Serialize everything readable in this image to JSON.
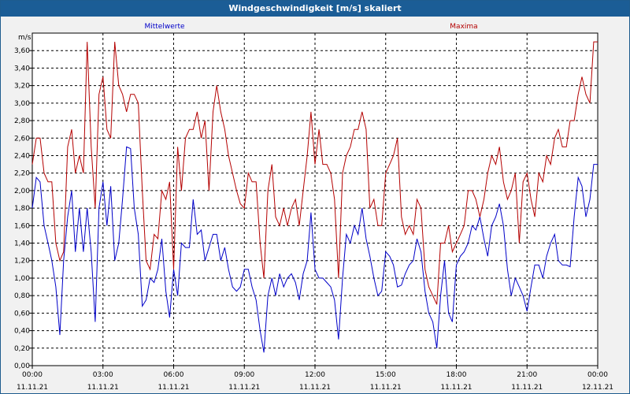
{
  "chart_data": {
    "type": "line",
    "title": "Windgeschwindigkeit [m/s] skaliert",
    "ylabel": "m/s",
    "ylim": [
      0,
      3.8
    ],
    "yticks": [
      "0,00",
      "0,20",
      "0,40",
      "0,60",
      "0,80",
      "1,00",
      "1,20",
      "1,40",
      "1,60",
      "1,80",
      "2,00",
      "2,20",
      "2,40",
      "2,60",
      "2,80",
      "3,00",
      "3,20",
      "3,40",
      "3,60"
    ],
    "xrange_hours": [
      0,
      24
    ],
    "xticks": [
      {
        "time": "00:00",
        "date": "11.11.21"
      },
      {
        "time": "03:00",
        "date": "11.11.21"
      },
      {
        "time": "06:00",
        "date": "11.11.21"
      },
      {
        "time": "09:00",
        "date": "11.11.21"
      },
      {
        "time": "12:00",
        "date": "11.11.21"
      },
      {
        "time": "15:00",
        "date": "11.11.21"
      },
      {
        "time": "18:00",
        "date": "11.11.21"
      },
      {
        "time": "21:00",
        "date": "11.11.21"
      },
      {
        "time": "00:00",
        "date": "12.11.21"
      }
    ],
    "grid": true,
    "series": [
      {
        "name": "Mittelwerte",
        "color": "#0000c8",
        "x": [
          0,
          0.17,
          0.33,
          0.5,
          0.67,
          0.83,
          1.0,
          1.17,
          1.33,
          1.5,
          1.67,
          1.83,
          2.0,
          2.17,
          2.33,
          2.5,
          2.67,
          2.83,
          3.0,
          3.17,
          3.33,
          3.5,
          3.67,
          3.83,
          4.0,
          4.17,
          4.33,
          4.5,
          4.67,
          4.83,
          5.0,
          5.17,
          5.33,
          5.5,
          5.67,
          5.83,
          6.0,
          6.17,
          6.33,
          6.5,
          6.67,
          6.83,
          7.0,
          7.17,
          7.33,
          7.5,
          7.67,
          7.83,
          8.0,
          8.17,
          8.33,
          8.5,
          8.67,
          8.83,
          9.0,
          9.17,
          9.33,
          9.5,
          9.67,
          9.83,
          10.0,
          10.17,
          10.33,
          10.5,
          10.67,
          10.83,
          11.0,
          11.17,
          11.33,
          11.5,
          11.67,
          11.83,
          12.0,
          12.17,
          12.33,
          12.5,
          12.67,
          12.83,
          13.0,
          13.17,
          13.33,
          13.5,
          13.67,
          13.83,
          14.0,
          14.17,
          14.33,
          14.5,
          14.67,
          14.83,
          15.0,
          15.17,
          15.33,
          15.5,
          15.67,
          15.83,
          16.0,
          16.17,
          16.33,
          16.5,
          16.67,
          16.83,
          17.0,
          17.17,
          17.33,
          17.5,
          17.67,
          17.83,
          18.0,
          18.17,
          18.33,
          18.5,
          18.67,
          18.83,
          19.0,
          19.17,
          19.33,
          19.5,
          19.67,
          19.83,
          20.0,
          20.17,
          20.33,
          20.5,
          20.67,
          20.83,
          21.0,
          21.17,
          21.33,
          21.5,
          21.67,
          21.83,
          22.0,
          22.17,
          22.33,
          22.5,
          22.67,
          22.83,
          23.0,
          23.17,
          23.33,
          23.5,
          23.67,
          23.83,
          24.0
        ],
        "values": [
          1.8,
          2.15,
          2.1,
          1.6,
          1.4,
          1.2,
          0.9,
          0.35,
          1.2,
          1.7,
          2.0,
          1.3,
          1.8,
          1.3,
          1.8,
          1.3,
          0.5,
          1.8,
          2.1,
          1.6,
          2.05,
          1.2,
          1.4,
          1.9,
          2.5,
          2.48,
          1.8,
          1.5,
          0.68,
          0.75,
          1.0,
          0.95,
          1.1,
          1.45,
          0.85,
          0.55,
          1.1,
          0.8,
          1.4,
          1.35,
          1.35,
          1.9,
          1.5,
          1.55,
          1.2,
          1.35,
          1.5,
          1.5,
          1.2,
          1.35,
          1.1,
          0.9,
          0.85,
          0.9,
          1.1,
          1.1,
          0.9,
          0.75,
          0.4,
          0.15,
          0.8,
          1.0,
          0.8,
          1.05,
          0.9,
          1.0,
          1.05,
          0.95,
          0.75,
          1.05,
          1.2,
          1.75,
          1.1,
          1.0,
          1.0,
          0.95,
          0.9,
          0.75,
          0.3,
          1.0,
          1.5,
          1.4,
          1.6,
          1.5,
          1.8,
          1.45,
          1.25,
          1.0,
          0.8,
          0.85,
          1.3,
          1.25,
          1.15,
          0.9,
          0.92,
          1.05,
          1.15,
          1.2,
          1.45,
          1.3,
          0.85,
          0.6,
          0.5,
          0.2,
          0.8,
          1.2,
          0.6,
          0.5,
          1.15,
          1.25,
          1.3,
          1.4,
          1.6,
          1.55,
          1.7,
          1.45,
          1.25,
          1.6,
          1.7,
          1.85,
          1.6,
          1.1,
          0.8,
          1.0,
          0.9,
          0.8,
          0.62,
          0.9,
          1.15,
          1.15,
          1.0,
          1.25,
          1.4,
          1.5,
          1.2,
          1.15,
          1.15,
          1.13,
          1.7,
          2.15,
          2.05,
          1.7,
          1.9,
          2.3,
          2.3
        ],
        "label_pos": "left"
      },
      {
        "name": "Maxima",
        "color": "#b40000",
        "x": [
          0,
          0.17,
          0.33,
          0.5,
          0.67,
          0.83,
          1.0,
          1.17,
          1.33,
          1.5,
          1.67,
          1.83,
          2.0,
          2.17,
          2.33,
          2.5,
          2.67,
          2.83,
          3.0,
          3.17,
          3.33,
          3.5,
          3.67,
          3.83,
          4.0,
          4.17,
          4.33,
          4.5,
          4.67,
          4.83,
          5.0,
          5.17,
          5.33,
          5.5,
          5.67,
          5.83,
          6.0,
          6.17,
          6.33,
          6.5,
          6.67,
          6.83,
          7.0,
          7.17,
          7.33,
          7.5,
          7.67,
          7.83,
          8.0,
          8.17,
          8.33,
          8.5,
          8.67,
          8.83,
          9.0,
          9.17,
          9.33,
          9.5,
          9.67,
          9.83,
          10.0,
          10.17,
          10.33,
          10.5,
          10.67,
          10.83,
          11.0,
          11.17,
          11.33,
          11.5,
          11.67,
          11.83,
          12.0,
          12.17,
          12.33,
          12.5,
          12.67,
          12.83,
          13.0,
          13.17,
          13.33,
          13.5,
          13.67,
          13.83,
          14.0,
          14.17,
          14.33,
          14.5,
          14.67,
          14.83,
          15.0,
          15.17,
          15.33,
          15.5,
          15.67,
          15.83,
          16.0,
          16.17,
          16.33,
          16.5,
          16.67,
          16.83,
          17.0,
          17.17,
          17.33,
          17.5,
          17.67,
          17.83,
          18.0,
          18.17,
          18.33,
          18.5,
          18.67,
          18.83,
          19.0,
          19.17,
          19.33,
          19.5,
          19.67,
          19.83,
          20.0,
          20.17,
          20.33,
          20.5,
          20.67,
          20.83,
          21.0,
          21.17,
          21.33,
          21.5,
          21.67,
          21.83,
          22.0,
          22.17,
          22.33,
          22.5,
          22.67,
          22.83,
          23.0,
          23.17,
          23.33,
          23.5,
          23.67,
          23.83,
          24.0
        ],
        "values": [
          2.3,
          2.6,
          2.6,
          2.2,
          2.1,
          2.1,
          1.4,
          1.2,
          1.3,
          2.5,
          2.7,
          2.2,
          2.4,
          2.2,
          3.7,
          2.5,
          1.8,
          3.1,
          3.3,
          2.7,
          2.6,
          3.7,
          3.2,
          3.1,
          2.9,
          3.1,
          3.1,
          3.0,
          2.0,
          1.2,
          1.1,
          1.5,
          1.45,
          2.0,
          1.9,
          2.1,
          1.1,
          2.5,
          2.0,
          2.6,
          2.7,
          2.7,
          2.9,
          2.6,
          2.8,
          2.0,
          2.9,
          3.2,
          2.9,
          2.7,
          2.4,
          2.2,
          2.0,
          1.85,
          1.8,
          2.2,
          2.1,
          2.1,
          1.4,
          1.0,
          2.0,
          2.3,
          1.7,
          1.6,
          1.8,
          1.6,
          1.8,
          1.9,
          1.6,
          2.0,
          2.4,
          2.9,
          2.3,
          2.7,
          2.3,
          2.3,
          2.2,
          1.9,
          1.0,
          2.2,
          2.4,
          2.5,
          2.7,
          2.7,
          2.9,
          2.7,
          1.8,
          1.9,
          1.6,
          1.6,
          2.2,
          2.3,
          2.4,
          2.6,
          1.7,
          1.5,
          1.6,
          1.5,
          1.9,
          1.8,
          1.1,
          0.9,
          0.8,
          0.7,
          1.4,
          1.4,
          1.6,
          1.3,
          1.4,
          1.5,
          1.6,
          2.0,
          2.0,
          1.9,
          1.7,
          1.9,
          2.2,
          2.4,
          2.3,
          2.5,
          2.1,
          1.9,
          2.0,
          2.2,
          1.4,
          2.1,
          2.2,
          1.9,
          1.7,
          2.2,
          2.1,
          2.4,
          2.3,
          2.6,
          2.7,
          2.5,
          2.5,
          2.8,
          2.8,
          3.1,
          3.3,
          3.1,
          3.0,
          3.7,
          3.7
        ],
        "label_pos": "right"
      }
    ]
  }
}
